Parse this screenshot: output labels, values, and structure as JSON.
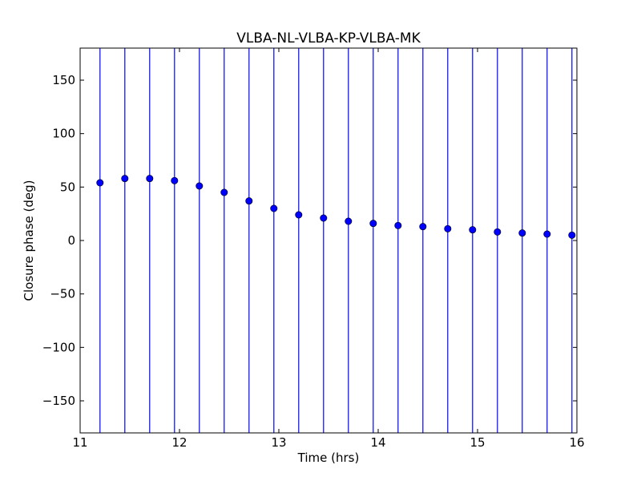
{
  "chart_data": {
    "type": "scatter",
    "title": "VLBA-NL-VLBA-KP-VLBA-MK",
    "xlabel": "Time (hrs)",
    "ylabel": "Closure phase (deg)",
    "xlim": [
      11,
      16
    ],
    "ylim": [
      -180,
      180
    ],
    "xticks": [
      11,
      12,
      13,
      14,
      15,
      16
    ],
    "yticks": [
      150,
      100,
      50,
      0,
      -50,
      -100,
      -150
    ],
    "xtick_labels": [
      "11",
      "12",
      "13",
      "14",
      "15",
      "16"
    ],
    "ytick_labels": [
      "150",
      "100",
      "50",
      "0",
      "−50",
      "−100",
      "−150"
    ],
    "grid": false,
    "marker_color": "#0000ff",
    "errorbar_color": "#0000ff",
    "series": [
      {
        "x": [
          11.2,
          11.45,
          11.7,
          11.95,
          12.2,
          12.45,
          12.7,
          12.95,
          13.2,
          13.45,
          13.7,
          13.95,
          14.2,
          14.45,
          14.7,
          14.95,
          15.2,
          15.45,
          15.7,
          15.95
        ],
        "y": [
          54,
          58,
          58,
          56,
          51,
          45,
          37,
          30,
          24,
          21,
          18,
          16,
          14,
          13,
          11,
          10,
          8,
          7,
          6,
          5
        ],
        "error_bars": "span full y-range"
      }
    ]
  }
}
